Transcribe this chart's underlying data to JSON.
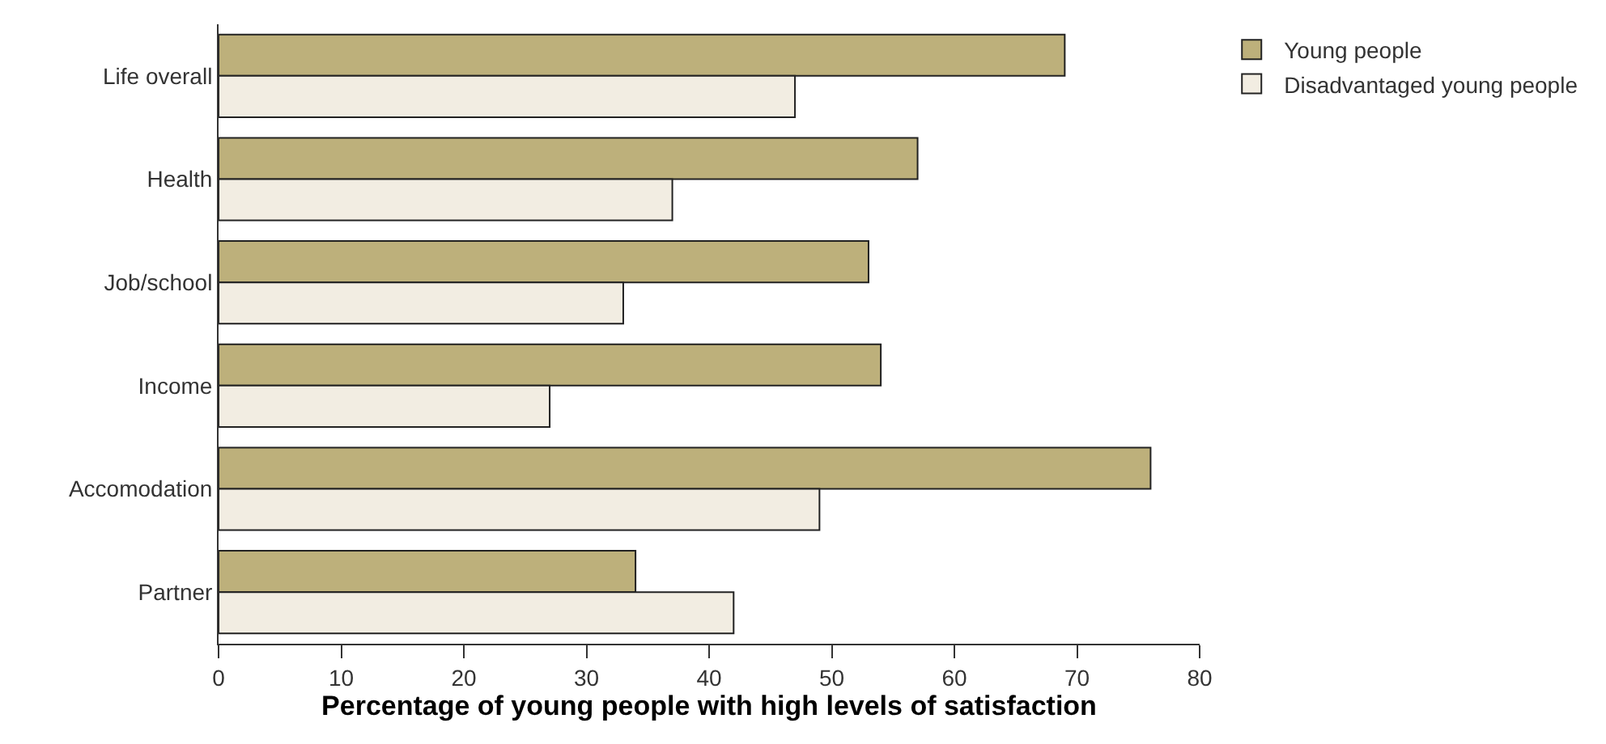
{
  "chart_data": {
    "type": "bar",
    "orientation": "horizontal",
    "xlabel": "Percentage of young people with high levels of satisfaction",
    "categories": [
      "Life overall",
      "Health",
      "Job/school",
      "Income",
      "Accomodation",
      "Partner"
    ],
    "series": [
      {
        "name": "Young people",
        "color": "#bdb07b",
        "values": [
          69,
          57,
          53,
          54,
          76,
          34
        ]
      },
      {
        "name": "Disadvantaged young people",
        "color": "#f2ede2",
        "values": [
          47,
          37,
          33,
          27,
          49,
          42
        ]
      }
    ],
    "xlim": [
      0,
      80
    ],
    "xticks": [
      0,
      10,
      20,
      30,
      40,
      50,
      60,
      70,
      80
    ],
    "grid": false,
    "legend": "top right"
  }
}
